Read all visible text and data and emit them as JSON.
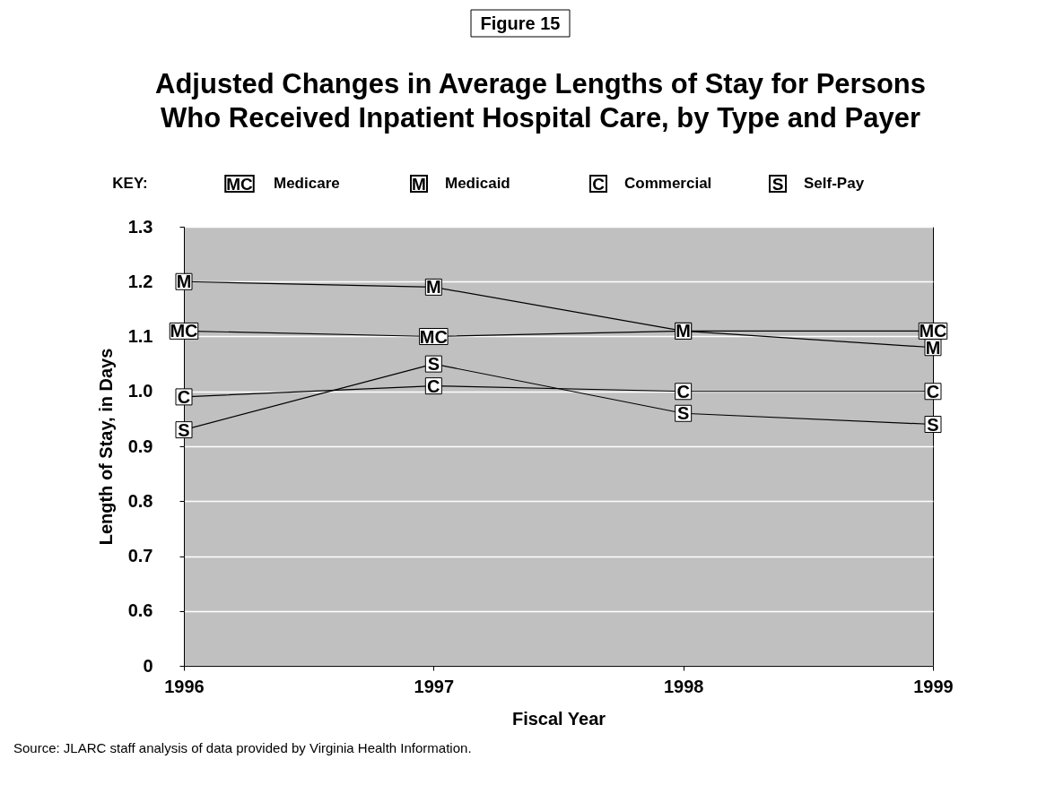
{
  "chart_data": {
    "type": "line",
    "title": "Adjusted Changes in Average Lengths of Stay for Persons\nWho Received Inpatient Hospital Care, by Type and Payer",
    "xlabel": "Fiscal Year",
    "ylabel": "Length of Stay, in Days",
    "legend_title": "KEY:",
    "annotations": [
      "Figure 15",
      "Source:  JLARC staff analysis of data provided by Virginia Health Information."
    ],
    "categories": [
      "1996",
      "1997",
      "1998",
      "1999"
    ],
    "series": [
      {
        "name": "Medicare",
        "color": "#000000",
        "values": [
          1.11,
          1.1,
          1.11,
          1.11
        ],
        "value_labels": [
          "MC",
          "MC",
          null,
          "MC"
        ]
      },
      {
        "name": "Medicaid",
        "color": "#000000",
        "values": [
          1.2,
          1.19,
          1.11,
          1.08
        ],
        "value_labels": [
          "M",
          "M",
          "M",
          "M"
        ]
      },
      {
        "name": "Commercial",
        "color": "#000000",
        "values": [
          0.99,
          1.01,
          1.0,
          1.0
        ],
        "value_labels": [
          "C",
          "C",
          "C",
          "C"
        ]
      },
      {
        "name": "Self-Pay",
        "color": "#000000",
        "values": [
          0.93,
          1.05,
          0.96,
          0.94
        ],
        "value_labels": [
          "S",
          "S",
          "S",
          "S"
        ]
      }
    ],
    "ylim": [
      0.5,
      1.3
    ],
    "yticks": [
      {
        "value": 0.5,
        "label": "0"
      },
      0.6,
      0.7,
      0.8,
      0.9,
      {
        "value": 1.0,
        "label": "1.0"
      },
      1.1,
      1.2,
      1.3
    ],
    "grid": "y",
    "legend": "top",
    "marker": "square",
    "line_style": "solid"
  }
}
